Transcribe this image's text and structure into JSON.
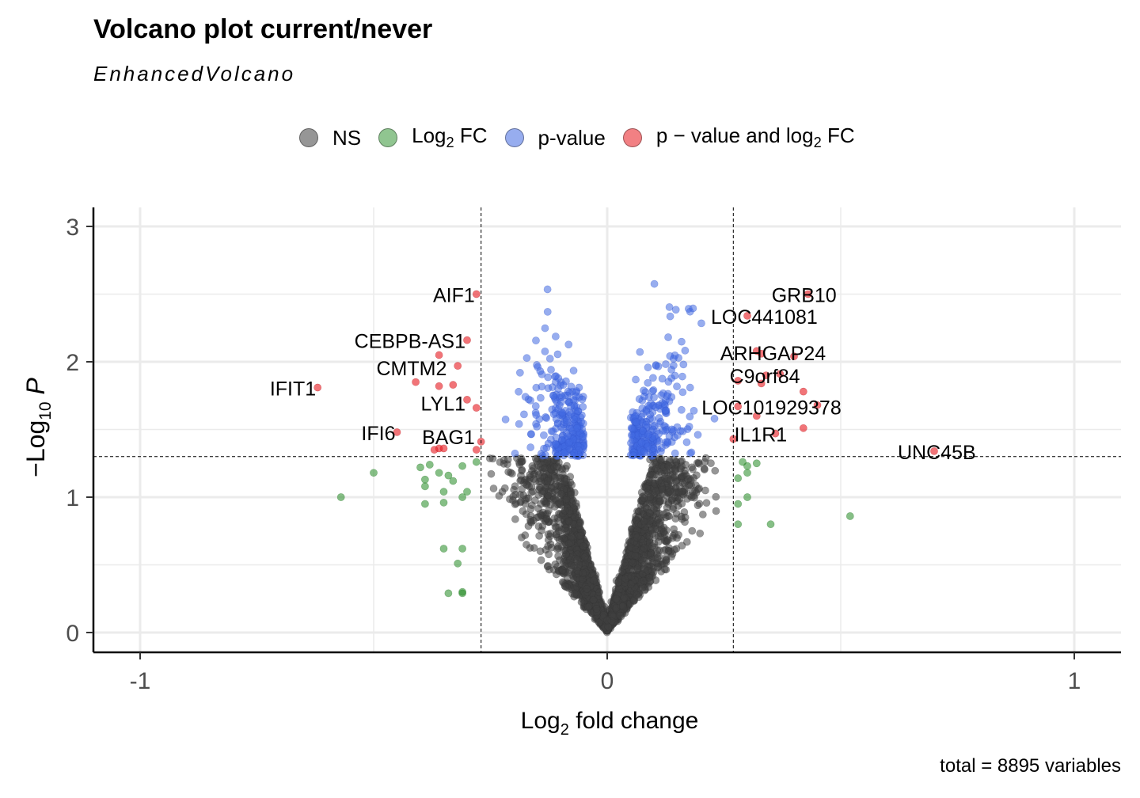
{
  "title": "Volcano plot current/never",
  "subtitle": "EnhancedVolcano",
  "caption": "total = 8895 variables",
  "legend": [
    {
      "label": "NS",
      "color": "#404040"
    },
    {
      "label": "Log",
      "sub": "2",
      "suffix": " FC",
      "color": "#228B22"
    },
    {
      "label": "p-value",
      "color": "#4169E1"
    },
    {
      "label": "p − value and log",
      "sub": "2",
      "suffix": " FC",
      "color": "#E8171E"
    }
  ],
  "chart_data": {
    "type": "scatter",
    "xlabel": "Log2 fold change",
    "ylabel": "−Log10 P",
    "xlim": [
      -1.1,
      1.1
    ],
    "ylim": [
      -0.15,
      3.1
    ],
    "xticks": [
      "-1",
      "0",
      "1"
    ],
    "yticks": [
      "0",
      "1",
      "2",
      "3"
    ],
    "fc_cutoff": 0.27,
    "p_cutoff_log10": 1.3,
    "total_variables": 8895,
    "labeled_genes": [
      {
        "name": "GRB10",
        "x": 0.43,
        "y": 2.5
      },
      {
        "name": "LOC441081",
        "x": 0.3,
        "y": 2.34
      },
      {
        "name": "ARHGAP24",
        "x": 0.32,
        "y": 2.07
      },
      {
        "name": "C9orf84",
        "x": 0.34,
        "y": 1.9
      },
      {
        "name": "LOC101929378",
        "x": 0.28,
        "y": 1.67
      },
      {
        "name": "IL1R1",
        "x": 0.35,
        "y": 1.47
      },
      {
        "name": "UNC45B",
        "x": 0.7,
        "y": 1.34
      },
      {
        "name": "AIF1",
        "x": -0.28,
        "y": 2.5
      },
      {
        "name": "CEBPB-AS1",
        "x": -0.3,
        "y": 2.16
      },
      {
        "name": "CMTM2",
        "x": -0.34,
        "y": 1.96
      },
      {
        "name": "IFIT1",
        "x": -0.62,
        "y": 1.81
      },
      {
        "name": "LYL1",
        "x": -0.3,
        "y": 1.7
      },
      {
        "name": "IFI6",
        "x": -0.45,
        "y": 1.48
      },
      {
        "name": "BAG1",
        "x": -0.28,
        "y": 1.45
      }
    ],
    "red_points": [
      {
        "x": 0.43,
        "y": 2.5
      },
      {
        "x": 0.3,
        "y": 2.34
      },
      {
        "x": 0.32,
        "y": 2.08
      },
      {
        "x": 0.33,
        "y": 2.06
      },
      {
        "x": 0.4,
        "y": 2.04
      },
      {
        "x": 0.34,
        "y": 1.9
      },
      {
        "x": 0.37,
        "y": 1.91
      },
      {
        "x": 0.33,
        "y": 1.84
      },
      {
        "x": 0.28,
        "y": 1.86
      },
      {
        "x": 0.42,
        "y": 1.78
      },
      {
        "x": 0.28,
        "y": 1.67
      },
      {
        "x": 0.32,
        "y": 1.6
      },
      {
        "x": 0.45,
        "y": 1.68
      },
      {
        "x": 0.42,
        "y": 1.51
      },
      {
        "x": 0.36,
        "y": 1.47
      },
      {
        "x": 0.27,
        "y": 1.43
      },
      {
        "x": 0.7,
        "y": 1.34
      },
      {
        "x": -0.28,
        "y": 2.5
      },
      {
        "x": -0.3,
        "y": 2.16
      },
      {
        "x": -0.32,
        "y": 1.97
      },
      {
        "x": -0.36,
        "y": 2.05
      },
      {
        "x": -0.33,
        "y": 1.83
      },
      {
        "x": -0.41,
        "y": 1.85
      },
      {
        "x": -0.36,
        "y": 1.82
      },
      {
        "x": -0.62,
        "y": 1.81
      },
      {
        "x": -0.3,
        "y": 1.72
      },
      {
        "x": -0.28,
        "y": 1.66
      },
      {
        "x": -0.45,
        "y": 1.48
      },
      {
        "x": -0.36,
        "y": 1.36
      },
      {
        "x": -0.37,
        "y": 1.35
      },
      {
        "x": -0.35,
        "y": 1.36
      },
      {
        "x": -0.28,
        "y": 1.35
      },
      {
        "x": -0.27,
        "y": 1.41
      }
    ],
    "green_points": [
      {
        "x": -0.57,
        "y": 1.0
      },
      {
        "x": -0.5,
        "y": 1.18
      },
      {
        "x": -0.4,
        "y": 1.22
      },
      {
        "x": -0.39,
        "y": 1.13
      },
      {
        "x": -0.38,
        "y": 1.24
      },
      {
        "x": -0.39,
        "y": 1.08
      },
      {
        "x": -0.36,
        "y": 1.18
      },
      {
        "x": -0.31,
        "y": 1.23
      },
      {
        "x": -0.33,
        "y": 1.12
      },
      {
        "x": -0.3,
        "y": 1.04
      },
      {
        "x": -0.34,
        "y": 1.16
      },
      {
        "x": -0.39,
        "y": 0.95
      },
      {
        "x": -0.35,
        "y": 0.96
      },
      {
        "x": -0.35,
        "y": 1.04
      },
      {
        "x": -0.31,
        "y": 1.0
      },
      {
        "x": -0.35,
        "y": 0.62
      },
      {
        "x": -0.31,
        "y": 0.62
      },
      {
        "x": -0.31,
        "y": 0.29
      },
      {
        "x": -0.34,
        "y": 0.29
      },
      {
        "x": -0.31,
        "y": 0.3
      },
      {
        "x": -0.32,
        "y": 0.51
      },
      {
        "x": -0.28,
        "y": 1.26
      },
      {
        "x": 0.29,
        "y": 1.26
      },
      {
        "x": 0.3,
        "y": 1.23
      },
      {
        "x": 0.32,
        "y": 1.25
      },
      {
        "x": 0.3,
        "y": 1.18
      },
      {
        "x": 0.28,
        "y": 1.14
      },
      {
        "x": 0.3,
        "y": 1.0
      },
      {
        "x": 0.28,
        "y": 0.8
      },
      {
        "x": 0.35,
        "y": 0.8
      },
      {
        "x": 0.52,
        "y": 0.86
      },
      {
        "x": 0.28,
        "y": 0.95
      }
    ]
  }
}
